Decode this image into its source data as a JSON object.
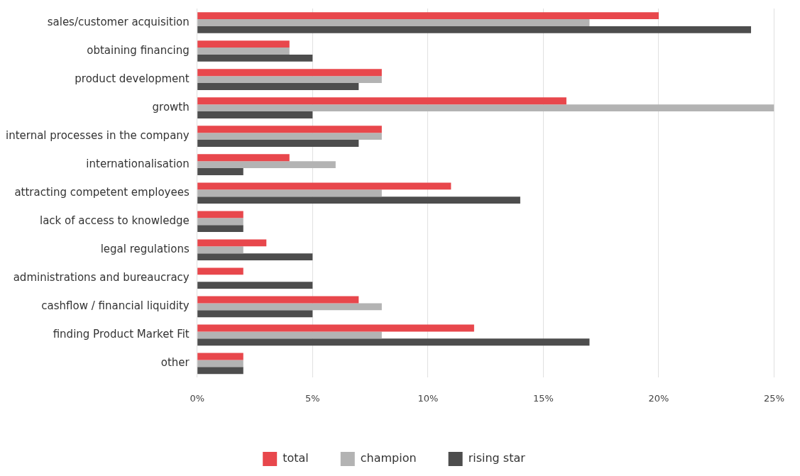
{
  "chart_data": {
    "type": "bar",
    "orientation": "horizontal",
    "categories": [
      "sales/customer acquisition",
      "obtaining financing",
      "product development",
      "growth",
      "internal processes in the company",
      "internationalisation",
      "attracting competent employees",
      "lack of access to knowledge",
      "legal regulations",
      "administrations and bureaucracy",
      "cashflow / financial liquidity",
      "finding Product Market Fit",
      "other"
    ],
    "series": [
      {
        "name": "total",
        "color": "#e8474c",
        "values": [
          20,
          4,
          8,
          16,
          8,
          4,
          11,
          2,
          3,
          2,
          7,
          12,
          2
        ]
      },
      {
        "name": "champion",
        "color": "#b3b3b3",
        "values": [
          17,
          4,
          8,
          25,
          8,
          6,
          8,
          2,
          2,
          null,
          8,
          8,
          2
        ]
      },
      {
        "name": "rising star",
        "color": "#4d4d4d",
        "values": [
          24,
          5,
          7,
          5,
          7,
          2,
          14,
          2,
          5,
          5,
          5,
          17,
          2
        ]
      }
    ],
    "xlim": [
      0,
      25
    ],
    "xticks": [
      {
        "value": 0,
        "label": "0%"
      },
      {
        "value": 5,
        "label": "5%"
      },
      {
        "value": 10,
        "label": "10%"
      },
      {
        "value": 15,
        "label": "15%"
      },
      {
        "value": 20,
        "label": "20%"
      },
      {
        "value": 25,
        "label": "25%"
      }
    ],
    "grid": "x",
    "legend": "bottom"
  }
}
